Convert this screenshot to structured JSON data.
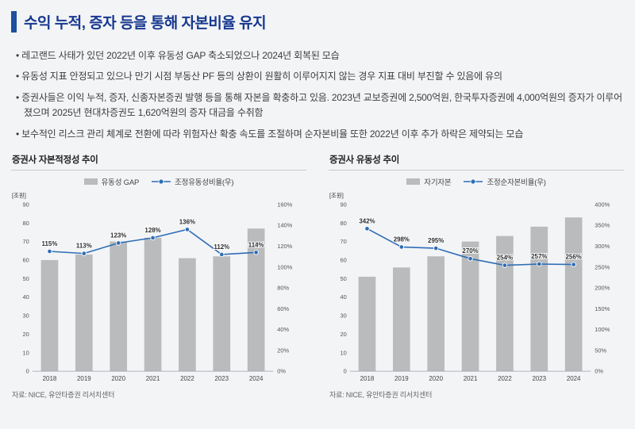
{
  "page": {
    "title": "수익 누적, 증자 등을 통해 자본비율 유지",
    "bullets": [
      "레고랜드 사태가 있던 2022년 이후 유동성 GAP 축소되었으나 2024년 회복된 모습",
      "유동성 지표 안정되고 있으나 만기 시점 부동산 PF 등의 상환이 원활히 이루어지지 않는 경우 지표 대비 부진할 수 있음에 유의",
      "증권사들은 이익 누적, 증자, 신종자본증권 발행 등을 통해 자본을 확충하고 있음. 2023년 교보증권에 2,500억원, 한국투자증권에 4,000억원의 증자가 이루어졌으며 2025년 현대차증권도 1,620억원의 증자 대금을 수취함",
      "보수적인 리스크 관리 체계로 전환에 따라 위험자산 확충 속도를 조절하며 순자본비율 또한 2022년 이후 추가 하락은 제약되는 모습"
    ]
  },
  "colors": {
    "title": "#17388f",
    "accent": "#1e4fa0",
    "bar": "#b9bbbd",
    "line": "#2d6db5"
  },
  "chart_data": [
    {
      "type": "bar",
      "title": "증권사 자본적정성 추이",
      "unit": "[조원]",
      "categories": [
        "2018",
        "2019",
        "2020",
        "2021",
        "2022",
        "2023",
        "2024"
      ],
      "series": [
        {
          "name": "유동성 GAP",
          "type": "bar",
          "axis": "left",
          "values": [
            60,
            63,
            70,
            72,
            61,
            62,
            77
          ]
        },
        {
          "name": "조정유동성비율(우)",
          "type": "line",
          "axis": "right",
          "values": [
            115,
            113,
            123,
            128,
            136,
            112,
            114
          ],
          "label_suffix": "%"
        }
      ],
      "left_axis": {
        "min": 0,
        "max": 90,
        "step": 10,
        "suffix": ""
      },
      "right_axis": {
        "min": 0,
        "max": 160,
        "step": 20,
        "suffix": "%"
      },
      "grid": false,
      "legend_position": "top",
      "source": "자료: NICE, 유안타증권 리서치센터"
    },
    {
      "type": "bar",
      "title": "증권사 유동성 추이",
      "unit": "[조원]",
      "categories": [
        "2018",
        "2019",
        "2020",
        "2021",
        "2022",
        "2023",
        "2024"
      ],
      "series": [
        {
          "name": "자기자본",
          "type": "bar",
          "axis": "left",
          "values": [
            51,
            56,
            62,
            70,
            73,
            78,
            83
          ]
        },
        {
          "name": "조정순자본비율(우)",
          "type": "line",
          "axis": "right",
          "values": [
            342,
            298,
            295,
            270,
            254,
            257,
            256
          ],
          "label_suffix": "%"
        }
      ],
      "left_axis": {
        "min": 0,
        "max": 90,
        "step": 10,
        "suffix": ""
      },
      "right_axis": {
        "min": 0,
        "max": 400,
        "step": 50,
        "suffix": "%"
      },
      "grid": false,
      "legend_position": "top",
      "source": "자료: NICE, 유안타증권 리서치센터"
    }
  ]
}
